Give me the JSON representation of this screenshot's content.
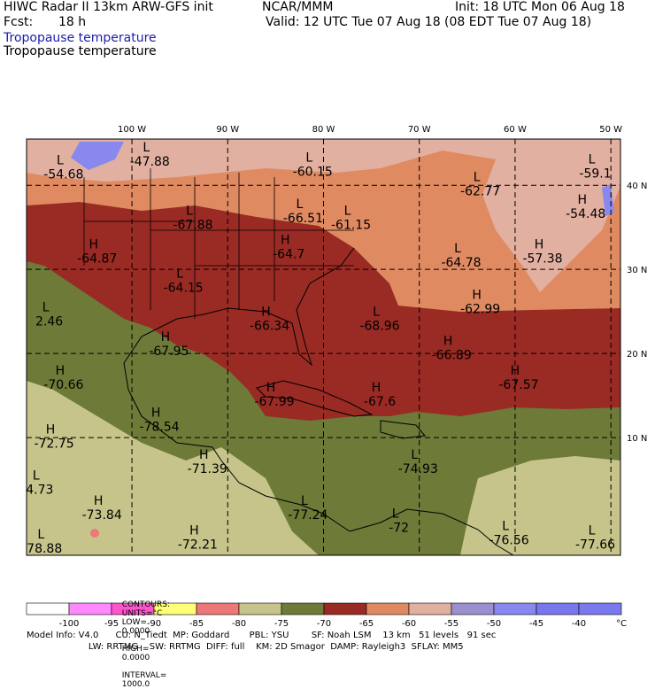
{
  "header": {
    "model_line": "HIWC Radar II 13km ARW-GFS init",
    "org": "NCAR/MMM",
    "init": "Init: 18 UTC Mon 06 Aug 18",
    "fcst_label": "Fcst:",
    "fcst_value": "18 h",
    "valid": "Valid: 12 UTC Tue 07 Aug 18 (08 EDT Tue 07 Aug 18)",
    "field_title_1": "Tropopause temperature",
    "field_title_2": "Tropopause temperature"
  },
  "map": {
    "lon_labels": [
      "100 W",
      "90 W",
      "80 W",
      "70 W",
      "60 W",
      "50 W"
    ],
    "lat_labels": [
      "40 N",
      "30 N",
      "20 N",
      "10 N"
    ],
    "colors": {
      "c_m70_m65": "#9a2a24",
      "c_m65_m60": "#e08a62",
      "c_m60_m55": "#e2b0a0",
      "c_m75_m70": "#6e7a38",
      "c_m80_m75": "#c6c48a",
      "c_m50_m45": "#8888ee",
      "c_m85_m80": "#ee7777"
    },
    "extrema": [
      {
        "type": "L",
        "value": "-47.88",
        "lon": -98.5,
        "lat": 44.0
      },
      {
        "type": "L",
        "value": "-54.68",
        "lon": -107.5,
        "lat": 42.5
      },
      {
        "type": "L",
        "value": "-60.15",
        "lon": -81.5,
        "lat": 42.8
      },
      {
        "type": "L",
        "value": "-62.77",
        "lon": -64.0,
        "lat": 40.5
      },
      {
        "type": "L",
        "value": "-59.1",
        "lon": -52.0,
        "lat": 42.6
      },
      {
        "type": "H",
        "value": "-54.48",
        "lon": -53.0,
        "lat": 37.8
      },
      {
        "type": "L",
        "value": "-67.88",
        "lon": -94.0,
        "lat": 36.5
      },
      {
        "type": "L",
        "value": "-66.51",
        "lon": -82.5,
        "lat": 37.3
      },
      {
        "type": "L",
        "value": "-61.15",
        "lon": -77.5,
        "lat": 36.5
      },
      {
        "type": "H",
        "value": "-64.87",
        "lon": -104.0,
        "lat": 32.5
      },
      {
        "type": "H",
        "value": "-64.7",
        "lon": -84.0,
        "lat": 33.0
      },
      {
        "type": "L",
        "value": "-64.78",
        "lon": -66.0,
        "lat": 32.0
      },
      {
        "type": "H",
        "value": "-57.38",
        "lon": -57.5,
        "lat": 32.5
      },
      {
        "type": "L",
        "value": "-64.15",
        "lon": -95.0,
        "lat": 29.0
      },
      {
        "type": "L",
        "value": "2.46",
        "lon": -109.0,
        "lat": 25.0
      },
      {
        "type": "H",
        "value": "-62.99",
        "lon": -64.0,
        "lat": 26.5
      },
      {
        "type": "H",
        "value": "-66.34",
        "lon": -86.0,
        "lat": 24.5
      },
      {
        "type": "L",
        "value": "-68.96",
        "lon": -74.5,
        "lat": 24.5
      },
      {
        "type": "H",
        "value": "-67.95",
        "lon": -96.5,
        "lat": 21.5
      },
      {
        "type": "H",
        "value": "-66.89",
        "lon": -67.0,
        "lat": 21.0
      },
      {
        "type": "H",
        "value": "-70.66",
        "lon": -107.5,
        "lat": 17.5
      },
      {
        "type": "H",
        "value": "-67.57",
        "lon": -60.0,
        "lat": 17.5
      },
      {
        "type": "H",
        "value": "-67.99",
        "lon": -85.5,
        "lat": 15.5
      },
      {
        "type": "H",
        "value": "-67.6",
        "lon": -74.5,
        "lat": 15.5
      },
      {
        "type": "H",
        "value": "-78.54",
        "lon": -97.5,
        "lat": 12.5
      },
      {
        "type": "H",
        "value": "-72.75",
        "lon": -108.5,
        "lat": 10.5
      },
      {
        "type": "L",
        "value": "-74.93",
        "lon": -70.5,
        "lat": 7.5
      },
      {
        "type": "H",
        "value": "-71.39",
        "lon": -92.5,
        "lat": 7.5
      },
      {
        "type": "L",
        "value": "4.73",
        "lon": -110.0,
        "lat": 5.0
      },
      {
        "type": "H",
        "value": "-73.84",
        "lon": -103.5,
        "lat": 2.0
      },
      {
        "type": "L",
        "value": "-77.24",
        "lon": -82.0,
        "lat": 2.0
      },
      {
        "type": "L",
        "value": "-72",
        "lon": -72.5,
        "lat": 0.5
      },
      {
        "type": "L",
        "value": "-76.56",
        "lon": -61.0,
        "lat": -1.0
      },
      {
        "type": "L",
        "value": "-77.66",
        "lon": -52.0,
        "lat": -1.5
      },
      {
        "type": "H",
        "value": "-72.21",
        "lon": -93.5,
        "lat": -1.5
      },
      {
        "type": "L",
        "value": "78.88",
        "lon": -109.5,
        "lat": -2.0
      }
    ]
  },
  "colorbar": {
    "colors": [
      "#ffffff",
      "#ff88ff",
      "#ff55cc",
      "#ffff77",
      "#ee7777",
      "#c6c48a",
      "#6e7a38",
      "#9a2a24",
      "#e08a62",
      "#e2b0a0",
      "#9c8fd0",
      "#8888ee",
      "#7777ee",
      "#7a7af0"
    ],
    "labels": [
      "-100",
      "-95",
      "-90",
      "-85",
      "-80",
      "-75",
      "-70",
      "-65",
      "-60",
      "-55",
      "-50",
      "-45",
      "-40"
    ],
    "unit": "°C"
  },
  "contours": {
    "label": "CONTOURS:",
    "units": "UNITS=°C",
    "low_label": "LOW=",
    "low_value": "0.0000",
    "high_label": "HIGH=",
    "high_value": "0.0000",
    "interval_label": "INTERVAL=",
    "interval_value": "1000.0"
  },
  "model_info": {
    "line1": "Model Info: V4.0      CU: N_Tiedt  MP: Goddard       PBL: YSU        SF: Noah LSM    13 km   51 levels   91 sec",
    "line2": "                      LW: RRTMG    SW: RRTMG  DIFF: full    KM: 2D Smagor  DAMP: Rayleigh3  SFLAY: MM5"
  }
}
